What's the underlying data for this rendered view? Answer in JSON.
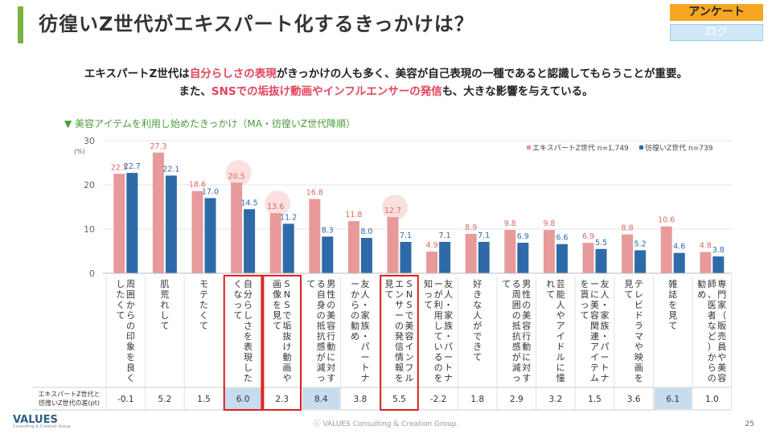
{
  "header": {
    "title": "彷徨いZ世代がエキスパート化するきっかけは？",
    "tag_primary": "アンケート",
    "tag_secondary": "ログ"
  },
  "summary": {
    "line1_a": "エキスパートZ世代は",
    "line1_hl": "自分らしさの表現",
    "line1_b": "がきっかけの人も多く、美容が自己表現の一種であると認識してもらうことが重要。",
    "line2_a": "また、",
    "line2_hl": "SNSでの垢抜け動画やインフルエンサーの発信",
    "line2_b": "も、大きな影響を与えている。"
  },
  "section_label": "▼ 美容アイテムを利用し始めたきっかけ（MA・彷徨いZ世代降順）",
  "chart_data": {
    "type": "bar",
    "yunit": "(%)",
    "ylim": [
      0,
      30
    ],
    "yticks": [
      0,
      10,
      20,
      30
    ],
    "categories": [
      "周囲からの印象を良くしたくて",
      "肌荒れして",
      "モテたくて",
      "自分らしさを表現したくなって",
      "SNSで垢抜け動画や画像を見て",
      "男性の美容行動に対する自身の抵抗感が減って",
      "友人・家族・パートナーからの勧め",
      "SNSで美容インフルエンサーの発信情報を見て",
      "友人・家族・パートナーが利用しているのを知って",
      "好きな人ができて",
      "男性の美容行動に対する周囲の抵抗感が減って",
      "芸能人やアイドルに憧れて",
      "友人・家族・パートナーに美容関連アイテムを貰って",
      "テレビドラマや映画を見て",
      "雑誌を見て",
      "専門家（販売員や美容師、医者など）からの勧め"
    ],
    "series": [
      {
        "name": "エキスパートZ世代",
        "n": "n=1,749",
        "color": "#e89a9a",
        "values": [
          22.5,
          27.3,
          18.6,
          20.5,
          13.6,
          16.8,
          11.8,
          12.7,
          4.9,
          8.9,
          9.8,
          9.8,
          6.9,
          8.8,
          10.6,
          4.8
        ]
      },
      {
        "name": "彷徨いZ世代",
        "n": "n=739",
        "color": "#2f6aa8",
        "values": [
          22.7,
          22.1,
          17.0,
          14.5,
          11.2,
          8.3,
          8.0,
          7.1,
          7.1,
          7.1,
          6.9,
          6.6,
          5.5,
          5.2,
          4.6,
          3.8
        ]
      }
    ],
    "diff_label": "エキスパートZ世代と彷徨いZ世代の差(pt)",
    "diff_values": [
      "-0.1",
      "5.2",
      "1.5",
      "6.0",
      "2.3",
      "8.4",
      "3.8",
      "5.5",
      "-2.2",
      "1.8",
      "2.9",
      "3.2",
      "1.5",
      "3.6",
      "6.1",
      "1.0"
    ],
    "diff_highlight": [
      false,
      false,
      false,
      true,
      false,
      true,
      false,
      false,
      false,
      false,
      false,
      false,
      false,
      false,
      true,
      false
    ],
    "highlight_categories": [
      3,
      4,
      7
    ],
    "circled_values": [
      3,
      4,
      7
    ]
  },
  "footer": {
    "copyright": "ⓒ VALUES Consulting & Creation Group.",
    "page": "25",
    "logo": "VALUES",
    "logo_sub": "Consulting & Creation Group"
  }
}
